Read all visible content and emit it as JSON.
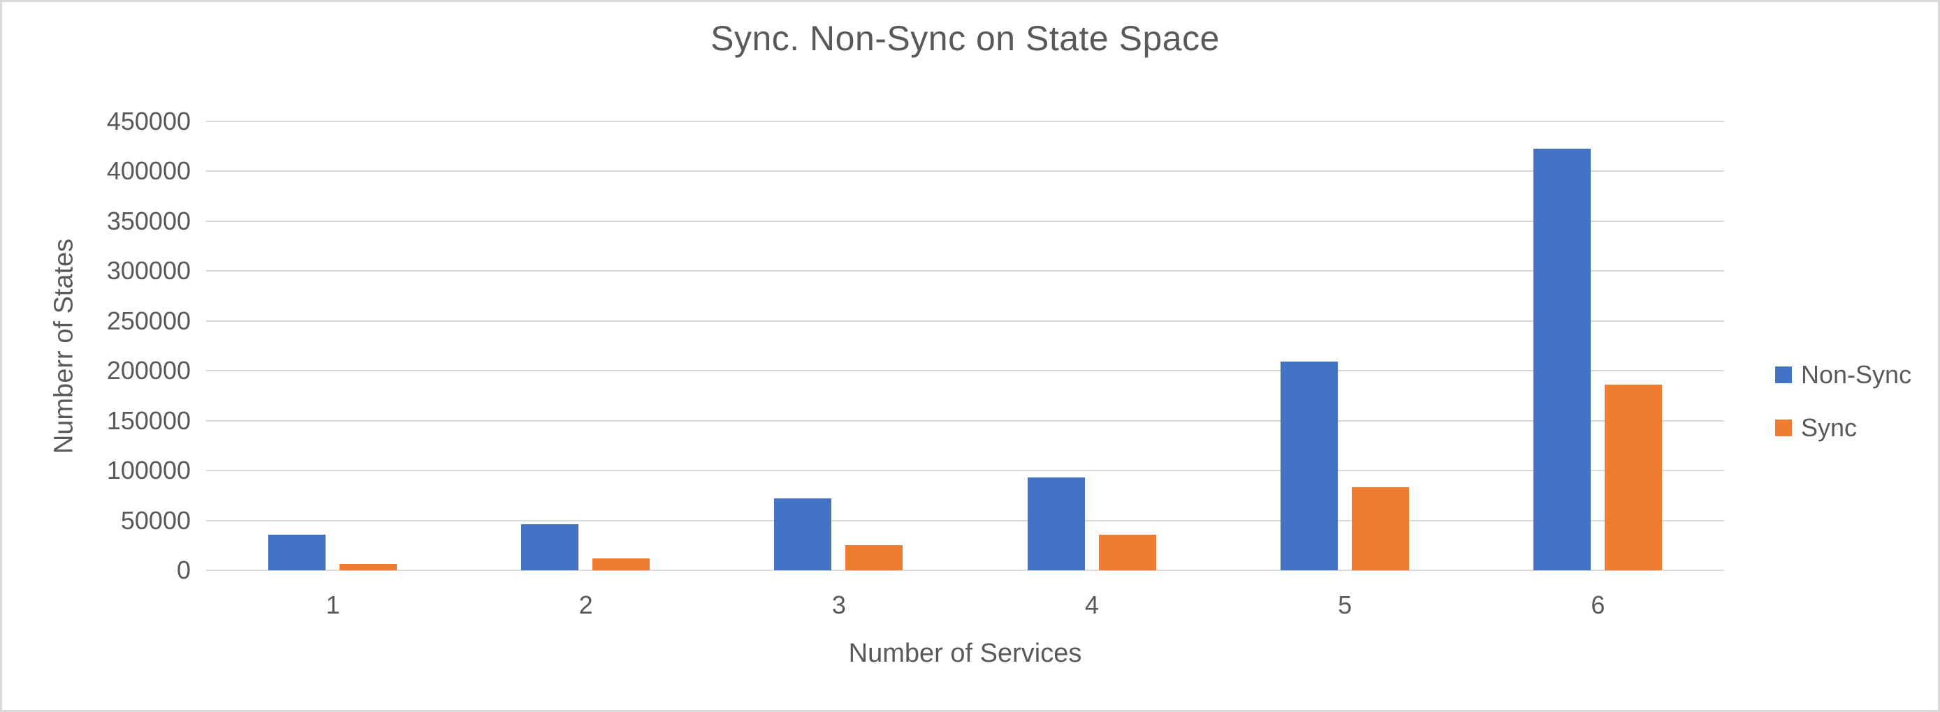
{
  "window": {
    "background": "#ffffff",
    "border_color": "#d9d9d9"
  },
  "chart_data": {
    "type": "bar",
    "title": "Sync. Non-Sync on State Space",
    "xlabel": "Number of Services",
    "ylabel": "Numberr of States",
    "categories": [
      "1",
      "2",
      "3",
      "4",
      "5",
      "6"
    ],
    "series": [
      {
        "name": "Non-Sync",
        "color": "#4472C4",
        "values": [
          36000,
          46000,
          72000,
          93000,
          209000,
          423000
        ]
      },
      {
        "name": "Sync",
        "color": "#ED7D31",
        "values": [
          6000,
          12000,
          25000,
          36000,
          83000,
          186000
        ]
      }
    ],
    "ylim": [
      0,
      450000
    ],
    "ytick_step": 50000,
    "ytick_labels": [
      "0",
      "50000",
      "100000",
      "150000",
      "200000",
      "250000",
      "300000",
      "350000",
      "400000",
      "450000"
    ],
    "grid": "horizontal",
    "gridline_color": "#d9d9d9",
    "text_color": "#595959",
    "legend_position": "right",
    "legend_entries": [
      "Non-Sync",
      "Sync"
    ]
  }
}
